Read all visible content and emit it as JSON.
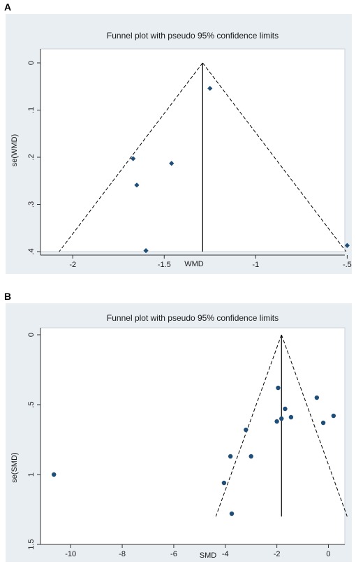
{
  "colors": {
    "background": "#e9eef3",
    "plot": "#ffffff",
    "marker": "#1f4e79",
    "line": "#000000"
  },
  "chart_data": [
    {
      "panel": "A",
      "type": "scatter",
      "title": "Funnel plot with pseudo 95% confidence limits",
      "xlabel": "WMD",
      "ylabel": "se(WMD)",
      "xlim": [
        -2.1,
        -0.49
      ],
      "ylim": [
        0,
        0.4
      ],
      "y_reversed": true,
      "xticks": [
        -2,
        -1.5,
        -1,
        -0.5
      ],
      "xtick_labels": [
        "-2",
        "-1.5",
        "-1",
        "-.5"
      ],
      "yticks": [
        0,
        0.1,
        0.2,
        0.3,
        0.4
      ],
      "ytick_labels": [
        "0",
        ".1",
        ".2",
        ".3",
        ".4"
      ],
      "marker": "diamond",
      "pooled_estimate": -1.29,
      "se_max": 0.4,
      "points": [
        {
          "x": -1.25,
          "y": 0.054
        },
        {
          "x": -1.67,
          "y": 0.203
        },
        {
          "x": -1.46,
          "y": 0.213
        },
        {
          "x": -1.65,
          "y": 0.259
        },
        {
          "x": -1.6,
          "y": 0.398
        },
        {
          "x": -0.5,
          "y": 0.387
        }
      ]
    },
    {
      "panel": "B",
      "type": "scatter",
      "title": "Funnel plot with pseudo 95% confidence limits",
      "xlabel": "SMD",
      "ylabel": "se(SMD)",
      "xlim": [
        -10.9,
        0.8
      ],
      "ylim": [
        0,
        1.5
      ],
      "y_reversed": true,
      "xticks": [
        -10,
        -8,
        -6,
        -4,
        -2,
        0
      ],
      "xtick_labels": [
        "-10",
        "-8",
        "-6",
        "-4",
        "-2",
        "0"
      ],
      "yticks": [
        0,
        0.5,
        1,
        1.5
      ],
      "ytick_labels": [
        "0",
        ".5",
        "1",
        "1.5"
      ],
      "marker": "circle",
      "pooled_estimate": -1.82,
      "se_max": 1.3,
      "points": [
        {
          "x": -10.65,
          "y": 1.0
        },
        {
          "x": -1.95,
          "y": 0.38
        },
        {
          "x": -0.45,
          "y": 0.45
        },
        {
          "x": -1.68,
          "y": 0.53
        },
        {
          "x": 0.2,
          "y": 0.58
        },
        {
          "x": -1.45,
          "y": 0.59
        },
        {
          "x": -1.82,
          "y": 0.6
        },
        {
          "x": -2.0,
          "y": 0.62
        },
        {
          "x": -0.2,
          "y": 0.63
        },
        {
          "x": -3.2,
          "y": 0.68
        },
        {
          "x": -3.8,
          "y": 0.87
        },
        {
          "x": -3.0,
          "y": 0.87
        },
        {
          "x": -4.05,
          "y": 1.06
        },
        {
          "x": -3.75,
          "y": 1.28
        }
      ]
    }
  ]
}
